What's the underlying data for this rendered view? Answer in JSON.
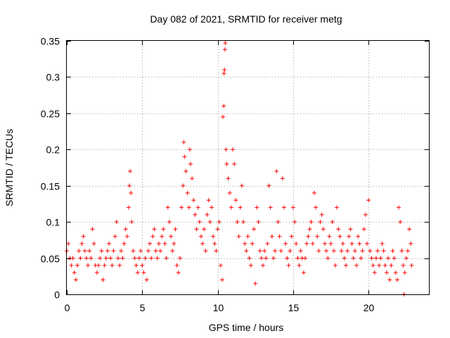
{
  "chart_data": {
    "type": "scatter",
    "title": "Day 082 of 2021, SRMTID for receiver metg",
    "xlabel": "GPS time / hours",
    "ylabel": "SRMTID / TECUs",
    "xlim": [
      0,
      24
    ],
    "ylim": [
      0,
      0.35
    ],
    "x_ticks": [
      0,
      5,
      10,
      15,
      20
    ],
    "x_tick_labels": [
      "0",
      "5",
      "10",
      "15",
      "20"
    ],
    "y_ticks": [
      0,
      0.05,
      0.1,
      0.15,
      0.2,
      0.25,
      0.3,
      0.35
    ],
    "y_tick_labels": [
      "0",
      "0.05",
      "0.1",
      "0.15",
      "0.2",
      "0.25",
      "0.3",
      "0.35"
    ],
    "grid": true,
    "marker": "plus",
    "color": "#ff0000",
    "series": [
      {
        "name": "SRMTID",
        "points": [
          [
            0.0,
            0.06
          ],
          [
            0.1,
            0.07
          ],
          [
            0.2,
            0.05
          ],
          [
            0.3,
            0.04
          ],
          [
            0.4,
            0.05
          ],
          [
            0.5,
            0.03
          ],
          [
            0.6,
            0.02
          ],
          [
            0.7,
            0.04
          ],
          [
            0.8,
            0.06
          ],
          [
            0.9,
            0.05
          ],
          [
            1.0,
            0.07
          ],
          [
            1.1,
            0.08
          ],
          [
            1.2,
            0.06
          ],
          [
            1.3,
            0.05
          ],
          [
            1.4,
            0.04
          ],
          [
            1.5,
            0.06
          ],
          [
            1.6,
            0.05
          ],
          [
            1.7,
            0.09
          ],
          [
            1.8,
            0.07
          ],
          [
            1.9,
            0.04
          ],
          [
            2.0,
            0.03
          ],
          [
            2.1,
            0.04
          ],
          [
            2.2,
            0.05
          ],
          [
            2.3,
            0.06
          ],
          [
            2.4,
            0.02
          ],
          [
            2.5,
            0.04
          ],
          [
            2.6,
            0.05
          ],
          [
            2.7,
            0.06
          ],
          [
            2.8,
            0.07
          ],
          [
            2.9,
            0.05
          ],
          [
            3.0,
            0.04
          ],
          [
            3.1,
            0.06
          ],
          [
            3.2,
            0.08
          ],
          [
            3.3,
            0.1
          ],
          [
            3.4,
            0.05
          ],
          [
            3.5,
            0.04
          ],
          [
            3.6,
            0.06
          ],
          [
            3.7,
            0.05
          ],
          [
            3.8,
            0.07
          ],
          [
            3.9,
            0.09
          ],
          [
            4.0,
            0.08
          ],
          [
            4.1,
            0.12
          ],
          [
            4.15,
            0.15
          ],
          [
            4.2,
            0.17
          ],
          [
            4.25,
            0.14
          ],
          [
            4.3,
            0.1
          ],
          [
            4.4,
            0.06
          ],
          [
            4.5,
            0.05
          ],
          [
            4.6,
            0.04
          ],
          [
            4.7,
            0.03
          ],
          [
            4.8,
            0.05
          ],
          [
            4.9,
            0.06
          ],
          [
            5.0,
            0.04
          ],
          [
            5.1,
            0.03
          ],
          [
            5.2,
            0.05
          ],
          [
            5.3,
            0.02
          ],
          [
            5.4,
            0.06
          ],
          [
            5.5,
            0.07
          ],
          [
            5.6,
            0.05
          ],
          [
            5.7,
            0.08
          ],
          [
            5.8,
            0.09
          ],
          [
            5.9,
            0.06
          ],
          [
            6.0,
            0.05
          ],
          [
            6.1,
            0.07
          ],
          [
            6.2,
            0.06
          ],
          [
            6.3,
            0.08
          ],
          [
            6.4,
            0.09
          ],
          [
            6.5,
            0.07
          ],
          [
            6.6,
            0.05
          ],
          [
            6.7,
            0.12
          ],
          [
            6.8,
            0.1
          ],
          [
            6.9,
            0.08
          ],
          [
            7.0,
            0.06
          ],
          [
            7.1,
            0.07
          ],
          [
            7.2,
            0.09
          ],
          [
            7.3,
            0.04
          ],
          [
            7.4,
            0.03
          ],
          [
            7.5,
            0.05
          ],
          [
            7.6,
            0.12
          ],
          [
            7.7,
            0.15
          ],
          [
            7.75,
            0.21
          ],
          [
            7.8,
            0.19
          ],
          [
            7.9,
            0.17
          ],
          [
            8.0,
            0.14
          ],
          [
            8.1,
            0.12
          ],
          [
            8.15,
            0.2
          ],
          [
            8.2,
            0.18
          ],
          [
            8.3,
            0.16
          ],
          [
            8.4,
            0.13
          ],
          [
            8.5,
            0.11
          ],
          [
            8.6,
            0.09
          ],
          [
            8.7,
            0.12
          ],
          [
            8.8,
            0.1
          ],
          [
            8.9,
            0.08
          ],
          [
            9.0,
            0.07
          ],
          [
            9.1,
            0.09
          ],
          [
            9.2,
            0.06
          ],
          [
            9.3,
            0.11
          ],
          [
            9.4,
            0.13
          ],
          [
            9.5,
            0.1
          ],
          [
            9.6,
            0.12
          ],
          [
            9.7,
            0.08
          ],
          [
            9.8,
            0.07
          ],
          [
            9.9,
            0.06
          ],
          [
            10.0,
            0.09
          ],
          [
            10.1,
            0.1
          ],
          [
            10.2,
            0.04
          ],
          [
            10.3,
            0.02
          ],
          [
            10.35,
            0.245
          ],
          [
            10.4,
            0.26
          ],
          [
            10.42,
            0.305
          ],
          [
            10.45,
            0.31
          ],
          [
            10.48,
            0.338
          ],
          [
            10.5,
            0.347
          ],
          [
            10.55,
            0.2
          ],
          [
            10.6,
            0.18
          ],
          [
            10.7,
            0.16
          ],
          [
            10.8,
            0.14
          ],
          [
            10.9,
            0.12
          ],
          [
            11.0,
            0.2
          ],
          [
            11.1,
            0.18
          ],
          [
            11.2,
            0.13
          ],
          [
            11.3,
            0.1
          ],
          [
            11.4,
            0.08
          ],
          [
            11.5,
            0.12
          ],
          [
            11.6,
            0.15
          ],
          [
            11.7,
            0.1
          ],
          [
            11.8,
            0.07
          ],
          [
            11.9,
            0.06
          ],
          [
            12.0,
            0.08
          ],
          [
            12.1,
            0.05
          ],
          [
            12.2,
            0.04
          ],
          [
            12.3,
            0.07
          ],
          [
            12.4,
            0.09
          ],
          [
            12.5,
            0.015
          ],
          [
            12.6,
            0.12
          ],
          [
            12.7,
            0.1
          ],
          [
            12.8,
            0.06
          ],
          [
            12.9,
            0.05
          ],
          [
            13.0,
            0.04
          ],
          [
            13.1,
            0.06
          ],
          [
            13.2,
            0.05
          ],
          [
            13.3,
            0.07
          ],
          [
            13.4,
            0.15
          ],
          [
            13.5,
            0.12
          ],
          [
            13.6,
            0.08
          ],
          [
            13.7,
            0.05
          ],
          [
            13.8,
            0.06
          ],
          [
            13.9,
            0.17
          ],
          [
            14.0,
            0.1
          ],
          [
            14.1,
            0.08
          ],
          [
            14.2,
            0.06
          ],
          [
            14.3,
            0.16
          ],
          [
            14.4,
            0.12
          ],
          [
            14.5,
            0.07
          ],
          [
            14.6,
            0.05
          ],
          [
            14.7,
            0.04
          ],
          [
            14.8,
            0.06
          ],
          [
            14.9,
            0.08
          ],
          [
            15.0,
            0.12
          ],
          [
            15.1,
            0.1
          ],
          [
            15.2,
            0.07
          ],
          [
            15.3,
            0.05
          ],
          [
            15.4,
            0.04
          ],
          [
            15.5,
            0.06
          ],
          [
            15.6,
            0.05
          ],
          [
            15.7,
            0.03
          ],
          [
            15.8,
            0.05
          ],
          [
            15.9,
            0.07
          ],
          [
            16.0,
            0.08
          ],
          [
            16.1,
            0.09
          ],
          [
            16.2,
            0.1
          ],
          [
            16.3,
            0.07
          ],
          [
            16.4,
            0.14
          ],
          [
            16.5,
            0.12
          ],
          [
            16.6,
            0.08
          ],
          [
            16.7,
            0.06
          ],
          [
            16.8,
            0.1
          ],
          [
            16.9,
            0.11
          ],
          [
            17.0,
            0.09
          ],
          [
            17.1,
            0.07
          ],
          [
            17.2,
            0.06
          ],
          [
            17.3,
            0.05
          ],
          [
            17.4,
            0.08
          ],
          [
            17.5,
            0.07
          ],
          [
            17.6,
            0.1
          ],
          [
            17.7,
            0.06
          ],
          [
            17.8,
            0.04
          ],
          [
            17.9,
            0.12
          ],
          [
            18.0,
            0.09
          ],
          [
            18.1,
            0.08
          ],
          [
            18.2,
            0.06
          ],
          [
            18.3,
            0.07
          ],
          [
            18.4,
            0.05
          ],
          [
            18.5,
            0.04
          ],
          [
            18.6,
            0.06
          ],
          [
            18.7,
            0.08
          ],
          [
            18.8,
            0.09
          ],
          [
            18.9,
            0.07
          ],
          [
            19.0,
            0.05
          ],
          [
            19.1,
            0.06
          ],
          [
            19.2,
            0.04
          ],
          [
            19.3,
            0.08
          ],
          [
            19.4,
            0.07
          ],
          [
            19.5,
            0.05
          ],
          [
            19.6,
            0.06
          ],
          [
            19.7,
            0.09
          ],
          [
            19.8,
            0.11
          ],
          [
            19.9,
            0.07
          ],
          [
            20.0,
            0.13
          ],
          [
            20.1,
            0.06
          ],
          [
            20.2,
            0.05
          ],
          [
            20.3,
            0.04
          ],
          [
            20.4,
            0.03
          ],
          [
            20.5,
            0.05
          ],
          [
            20.6,
            0.06
          ],
          [
            20.7,
            0.04
          ],
          [
            20.8,
            0.05
          ],
          [
            20.9,
            0.07
          ],
          [
            21.0,
            0.06
          ],
          [
            21.1,
            0.04
          ],
          [
            21.2,
            0.03
          ],
          [
            21.3,
            0.05
          ],
          [
            21.4,
            0.02
          ],
          [
            21.5,
            0.04
          ],
          [
            21.6,
            0.06
          ],
          [
            21.7,
            0.05
          ],
          [
            21.8,
            0.03
          ],
          [
            21.9,
            0.02
          ],
          [
            22.0,
            0.12
          ],
          [
            22.1,
            0.1
          ],
          [
            22.2,
            0.06
          ],
          [
            22.3,
            0.04
          ],
          [
            22.35,
            0.0
          ],
          [
            22.4,
            0.03
          ],
          [
            22.5,
            0.05
          ],
          [
            22.6,
            0.06
          ],
          [
            22.7,
            0.09
          ],
          [
            22.8,
            0.07
          ],
          [
            22.85,
            0.04
          ]
        ]
      }
    ]
  }
}
